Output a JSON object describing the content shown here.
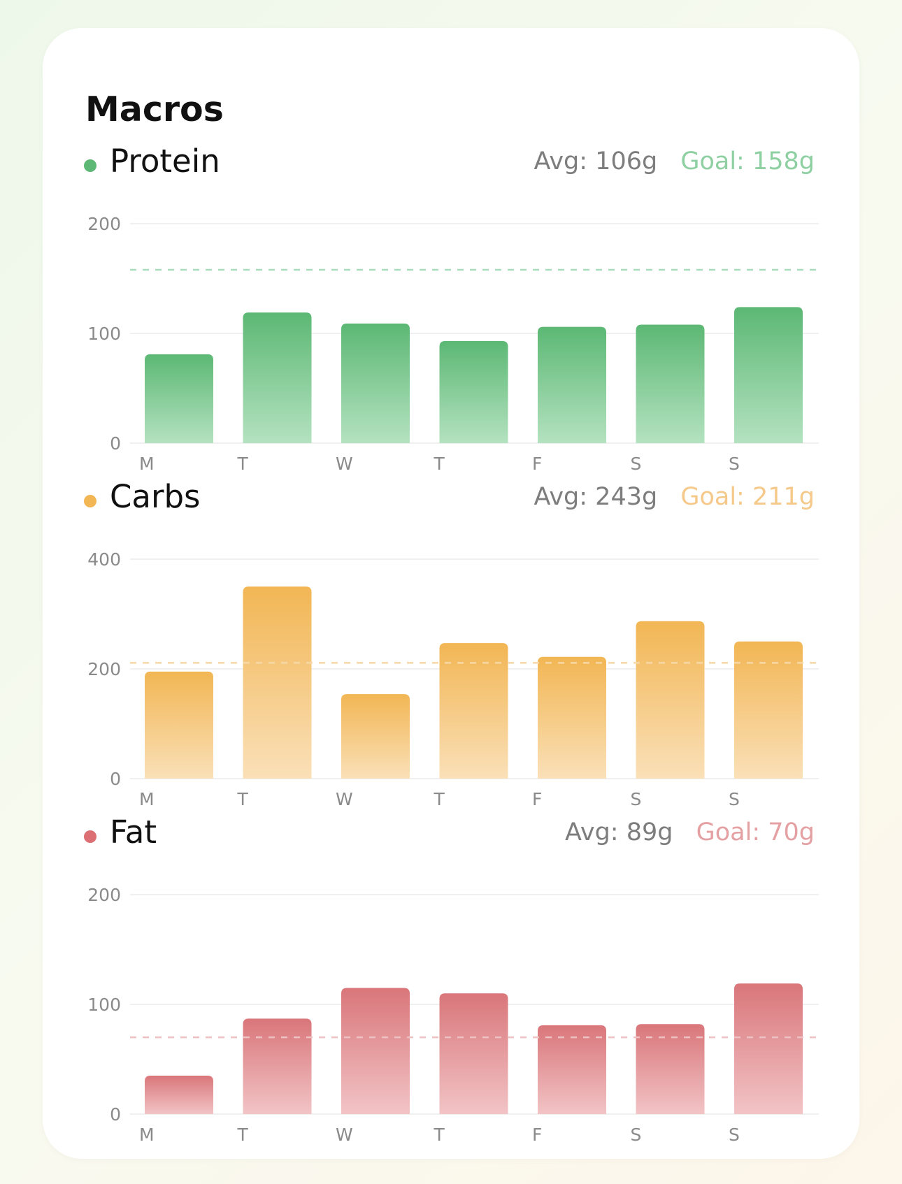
{
  "card": {
    "title": "Macros"
  },
  "chart_data": [
    {
      "type": "bar",
      "name": "Protein",
      "title": "Protein",
      "avg_label": "Avg: 106g",
      "goal_label": "Goal: 158g",
      "goal": 158,
      "categories": [
        "M",
        "T",
        "W",
        "T",
        "F",
        "S",
        "S"
      ],
      "values": [
        81,
        119,
        109,
        93,
        106,
        108,
        124
      ],
      "ylim": [
        0,
        200
      ],
      "yticks": [
        0,
        100,
        200
      ],
      "grid": true,
      "colors": {
        "dot": "#5cb874",
        "top": "#5cb874",
        "bottom": "#b4e2c0",
        "goal": "#8fd0a3",
        "goal_line": "#a8dcbc"
      }
    },
    {
      "type": "bar",
      "name": "Carbs",
      "title": "Carbs",
      "avg_label": "Avg: 243g",
      "goal_label": "Goal: 211g",
      "goal": 211,
      "categories": [
        "M",
        "T",
        "W",
        "T",
        "F",
        "S",
        "S"
      ],
      "values": [
        195,
        350,
        154,
        247,
        222,
        287,
        250
      ],
      "ylim": [
        0,
        400
      ],
      "yticks": [
        0,
        200,
        400
      ],
      "grid": true,
      "colors": {
        "dot": "#f2b654",
        "top": "#f2b654",
        "bottom": "#fae0b8",
        "goal": "#f5c98a",
        "goal_line": "#f6d8a6"
      }
    },
    {
      "type": "bar",
      "name": "Fat",
      "title": "Fat",
      "avg_label": "Avg: 89g",
      "goal_label": "Goal: 70g",
      "goal": 70,
      "categories": [
        "M",
        "T",
        "W",
        "T",
        "F",
        "S",
        "S"
      ],
      "values": [
        35,
        87,
        115,
        110,
        81,
        82,
        119
      ],
      "ylim": [
        0,
        200
      ],
      "yticks": [
        0,
        100,
        200
      ],
      "grid": true,
      "colors": {
        "dot": "#db6f73",
        "top": "#d9767a",
        "bottom": "#f2c4c6",
        "goal": "#e4a0a2",
        "goal_line": "#edc0c2"
      }
    }
  ]
}
